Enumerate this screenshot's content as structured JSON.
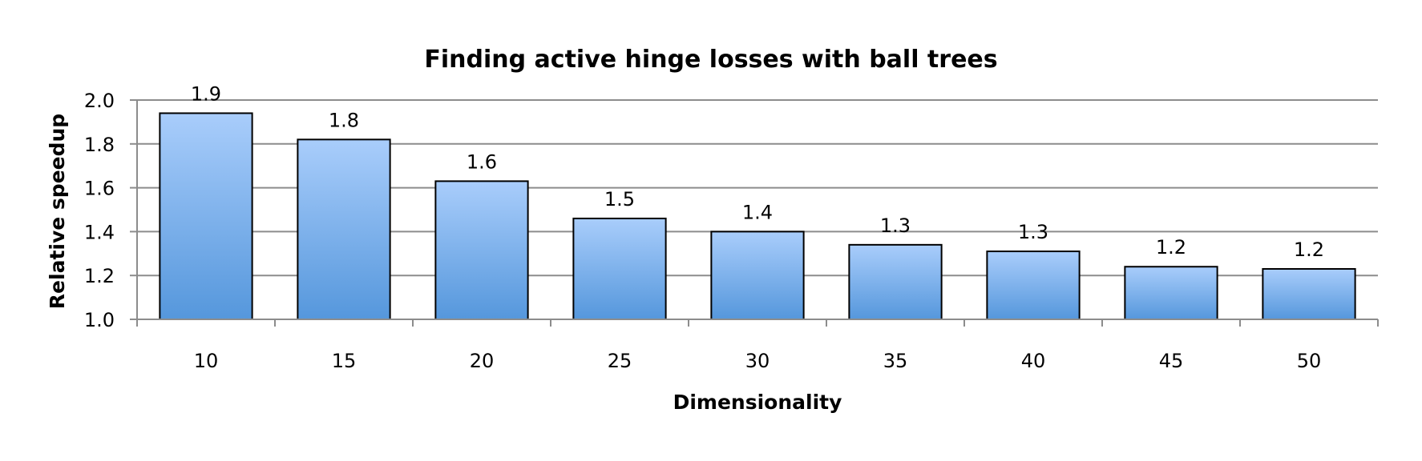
{
  "chart_data": {
    "type": "bar",
    "title": "Finding active hinge losses with ball trees",
    "xlabel": "Dimensionality",
    "ylabel": "Relative speedup",
    "categories": [
      "10",
      "15",
      "20",
      "25",
      "30",
      "35",
      "40",
      "45",
      "50"
    ],
    "values": [
      1.94,
      1.82,
      1.63,
      1.46,
      1.4,
      1.34,
      1.31,
      1.24,
      1.23
    ],
    "data_labels": [
      "1.9",
      "1.8",
      "1.6",
      "1.5",
      "1.4",
      "1.3",
      "1.3",
      "1.2",
      "1.2"
    ],
    "ylim": [
      1.0,
      2.0
    ],
    "y_ticks": [
      1.0,
      1.2,
      1.4,
      1.6,
      1.8,
      2.0
    ],
    "y_tick_labels": [
      "1.0",
      "1.2",
      "1.4",
      "1.6",
      "1.8",
      "2.0"
    ],
    "grid": true,
    "legend": "none",
    "colors": {
      "bar_top": "#a9cdfb",
      "bar_bottom": "#5597dc",
      "bar_border": "#000000",
      "grid": "#8c8c8c"
    }
  }
}
